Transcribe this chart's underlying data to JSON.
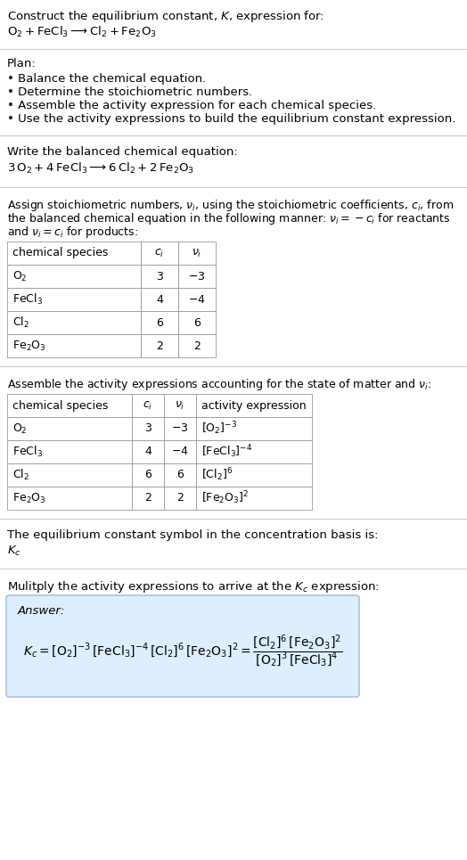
{
  "bg_color": "#ffffff",
  "text_color": "#000000",
  "title_line1": "Construct the equilibrium constant, $K$, expression for:",
  "title_line2": "$\\mathrm{O_2 + FeCl_3 \\longrightarrow Cl_2 + Fe_2O_3}$",
  "plan_header": "Plan:",
  "plan_bullets": [
    "• Balance the chemical equation.",
    "• Determine the stoichiometric numbers.",
    "• Assemble the activity expression for each chemical species.",
    "• Use the activity expressions to build the equilibrium constant expression."
  ],
  "balanced_header": "Write the balanced chemical equation:",
  "balanced_eq": "$\\mathrm{3\\,O_2 + 4\\,FeCl_3 \\longrightarrow 6\\,Cl_2 + 2\\,Fe_2O_3}$",
  "stoich_line1": "Assign stoichiometric numbers, $\\nu_i$, using the stoichiometric coefficients, $c_i$, from",
  "stoich_line2": "the balanced chemical equation in the following manner: $\\nu_i = -c_i$ for reactants",
  "stoich_line3": "and $\\nu_i = c_i$ for products:",
  "table1_headers": [
    "chemical species",
    "$c_i$",
    "$\\nu_i$"
  ],
  "table1_rows": [
    [
      "$\\mathrm{O_2}$",
      "3",
      "$-3$"
    ],
    [
      "$\\mathrm{FeCl_3}$",
      "4",
      "$-4$"
    ],
    [
      "$\\mathrm{Cl_2}$",
      "6",
      "6"
    ],
    [
      "$\\mathrm{Fe_2O_3}$",
      "2",
      "2"
    ]
  ],
  "activity_header": "Assemble the activity expressions accounting for the state of matter and $\\nu_i$:",
  "table2_headers": [
    "chemical species",
    "$c_i$",
    "$\\nu_i$",
    "activity expression"
  ],
  "table2_rows": [
    [
      "$\\mathrm{O_2}$",
      "3",
      "$-3$",
      "$[\\mathrm{O_2}]^{-3}$"
    ],
    [
      "$\\mathrm{FeCl_3}$",
      "4",
      "$-4$",
      "$[\\mathrm{FeCl_3}]^{-4}$"
    ],
    [
      "$\\mathrm{Cl_2}$",
      "6",
      "6",
      "$[\\mathrm{Cl_2}]^{6}$"
    ],
    [
      "$\\mathrm{Fe_2O_3}$",
      "2",
      "2",
      "$[\\mathrm{Fe_2O_3}]^{2}$"
    ]
  ],
  "kc_symbol_text": "The equilibrium constant symbol in the concentration basis is:",
  "kc_symbol": "$K_c$",
  "multiply_text": "Mulitply the activity expressions to arrive at the $K_c$ expression:",
  "answer_box_color": "#ddeeff",
  "answer_label": "Answer:",
  "answer_expr": "$K_c = [\\mathrm{O_2}]^{-3}\\,[\\mathrm{FeCl_3}]^{-4}\\,[\\mathrm{Cl_2}]^{6}\\,[\\mathrm{Fe_2O_3}]^{2} = \\dfrac{[\\mathrm{Cl_2}]^{6}\\,[\\mathrm{Fe_2O_3}]^{2}}{[\\mathrm{O_2}]^{3}\\,[\\mathrm{FeCl_3}]^{4}}$"
}
